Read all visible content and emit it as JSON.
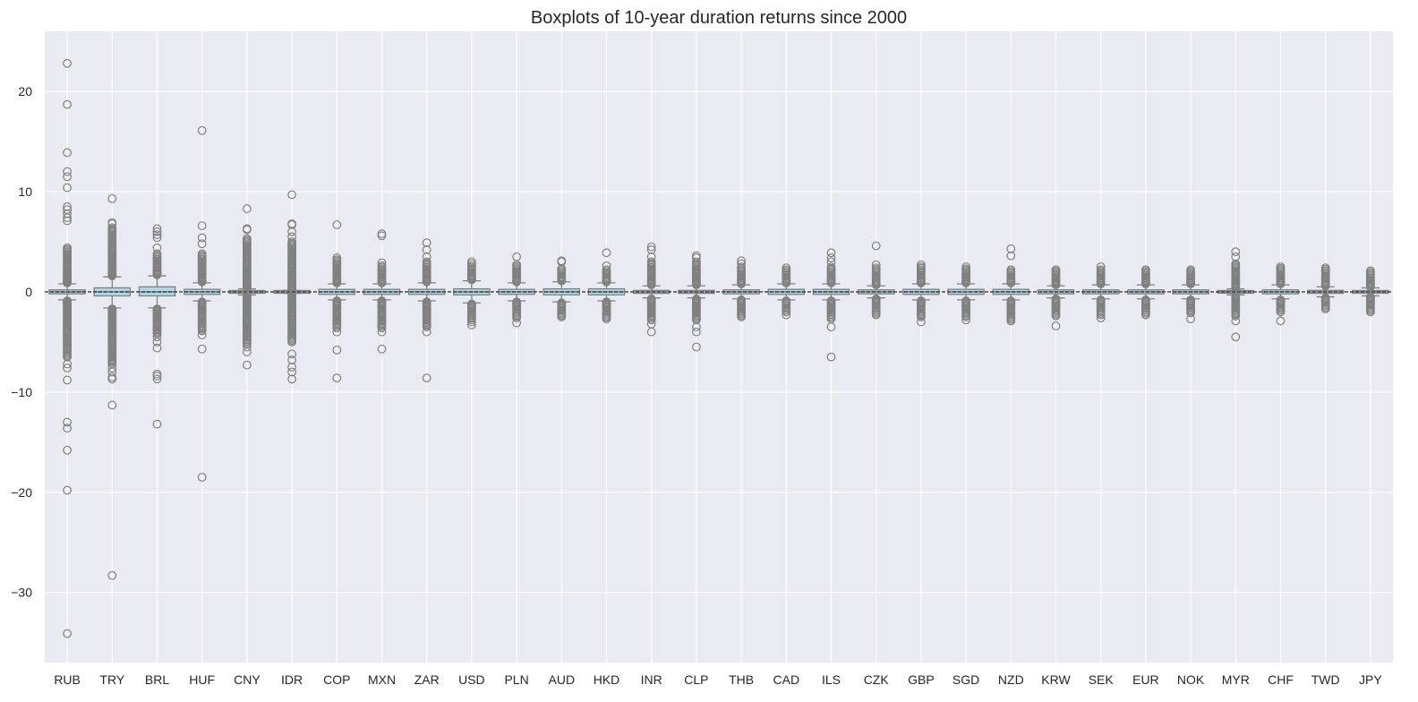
{
  "chart_data": {
    "type": "boxplot",
    "title": "Boxplots of 10-year duration returns since 2000",
    "xlabel": "",
    "ylabel": "",
    "ylim": [
      -37,
      26
    ],
    "yticks": [
      20,
      10,
      0,
      -10,
      -20,
      -30
    ],
    "ytick_labels": [
      "20",
      "10",
      "0",
      "−10",
      "−20",
      "−30"
    ],
    "grid": true,
    "colors": {
      "background": "#eaeaf2",
      "grid": "#ffffff",
      "box_fill": "#add8e6",
      "box_edge": "#808080",
      "median": "#808080"
    },
    "categories": [
      "RUB",
      "TRY",
      "BRL",
      "HUF",
      "CNY",
      "IDR",
      "COP",
      "MXN",
      "ZAR",
      "USD",
      "PLN",
      "AUD",
      "HKD",
      "INR",
      "CLP",
      "THB",
      "CAD",
      "ILS",
      "CZK",
      "GBP",
      "SGD",
      "NZD",
      "KRW",
      "SEK",
      "EUR",
      "NOK",
      "MYR",
      "CHF",
      "TWD",
      "JPY"
    ],
    "boxes": [
      {
        "q1": -0.2,
        "median": 0.0,
        "q3": 0.2,
        "whisker_low": -0.8,
        "whisker_high": 0.8,
        "max": 22.8,
        "min": -34.1,
        "outliers": [
          22.8,
          18.7,
          13.9,
          12.0,
          11.5,
          10.4,
          8.5,
          8.2,
          7.8,
          7.4,
          7.1,
          -7.2,
          -7.6,
          -8.8,
          -13.0,
          -13.6,
          -15.8,
          -19.8,
          -34.1
        ],
        "dense_upper": [
          0.9,
          4.4
        ],
        "dense_lower": [
          -0.9,
          -6.5
        ]
      },
      {
        "q1": -0.4,
        "median": 0.0,
        "q3": 0.4,
        "whisker_low": -1.6,
        "whisker_high": 1.5,
        "max": 9.3,
        "min": -28.3,
        "outliers": [
          9.3,
          6.9,
          6.8,
          -7.6,
          -8.0,
          -8.5,
          -8.7,
          -11.3,
          -28.3
        ],
        "dense_upper": [
          1.6,
          6.4
        ],
        "dense_lower": [
          -1.7,
          -7.2
        ]
      },
      {
        "q1": -0.4,
        "median": 0.0,
        "q3": 0.5,
        "whisker_low": -1.6,
        "whisker_high": 1.6,
        "max": 6.3,
        "min": -13.2,
        "outliers": [
          6.3,
          6.0,
          5.7,
          5.4,
          4.4,
          -4.5,
          -5.0,
          -5.6,
          -8.2,
          -8.4,
          -8.7,
          -13.2
        ],
        "dense_upper": [
          1.7,
          3.8
        ],
        "dense_lower": [
          -1.7,
          -4.2
        ]
      },
      {
        "q1": -0.25,
        "median": 0.0,
        "q3": 0.25,
        "whisker_low": -0.9,
        "whisker_high": 0.9,
        "max": 16.1,
        "min": -18.5,
        "outliers": [
          16.1,
          6.6,
          5.4,
          4.8,
          -4.3,
          -5.7,
          -18.5
        ],
        "dense_upper": [
          1.0,
          3.8
        ],
        "dense_lower": [
          -1.0,
          -3.9
        ]
      },
      {
        "q1": -0.1,
        "median": 0.0,
        "q3": 0.1,
        "whisker_low": -0.3,
        "whisker_high": 0.3,
        "max": 8.3,
        "min": -7.3,
        "outliers": [
          8.3,
          6.3,
          6.2,
          -5.5,
          -6.0,
          -7.3
        ],
        "dense_upper": [
          0.4,
          5.3
        ],
        "dense_lower": [
          -0.4,
          -5.2
        ]
      },
      {
        "q1": -0.05,
        "median": 0.0,
        "q3": 0.05,
        "whisker_low": -0.15,
        "whisker_high": 0.15,
        "max": 9.7,
        "min": -8.7,
        "outliers": [
          9.7,
          6.8,
          6.7,
          6.0,
          5.5,
          -6.2,
          -6.8,
          -7.5,
          -8.0,
          -8.7
        ],
        "dense_upper": [
          0.2,
          5.0
        ],
        "dense_lower": [
          -0.2,
          -5.0
        ]
      },
      {
        "q1": -0.25,
        "median": 0.0,
        "q3": 0.25,
        "whisker_low": -0.8,
        "whisker_high": 0.8,
        "max": 6.7,
        "min": -8.6,
        "outliers": [
          6.7,
          3.4,
          -4.0,
          -5.8,
          -8.6
        ],
        "dense_upper": [
          0.9,
          3.2
        ],
        "dense_lower": [
          -0.9,
          -3.6
        ]
      },
      {
        "q1": -0.25,
        "median": 0.0,
        "q3": 0.25,
        "whisker_low": -0.8,
        "whisker_high": 0.8,
        "max": 5.8,
        "min": -5.7,
        "outliers": [
          5.8,
          5.6,
          2.9,
          -4.0,
          -5.7
        ],
        "dense_upper": [
          0.9,
          2.6
        ],
        "dense_lower": [
          -0.9,
          -3.6
        ]
      },
      {
        "q1": -0.25,
        "median": 0.0,
        "q3": 0.25,
        "whisker_low": -0.9,
        "whisker_high": 0.9,
        "max": 4.9,
        "min": -8.6,
        "outliers": [
          4.9,
          4.2,
          3.5,
          -4.0,
          -8.6
        ],
        "dense_upper": [
          1.0,
          3.0
        ],
        "dense_lower": [
          -1.0,
          -3.5
        ]
      },
      {
        "q1": -0.3,
        "median": 0.0,
        "q3": 0.3,
        "whisker_low": -1.1,
        "whisker_high": 1.1,
        "max": 3.0,
        "min": -3.3,
        "outliers": [
          3.0,
          2.8,
          -3.0,
          -3.3
        ],
        "dense_upper": [
          1.2,
          2.6
        ],
        "dense_lower": [
          -1.2,
          -2.8
        ]
      },
      {
        "q1": -0.25,
        "median": 0.0,
        "q3": 0.25,
        "whisker_low": -0.9,
        "whisker_high": 0.9,
        "max": 3.5,
        "min": -3.1,
        "outliers": [
          3.5,
          -3.1
        ],
        "dense_upper": [
          1.0,
          2.7
        ],
        "dense_lower": [
          -1.0,
          -2.6
        ]
      },
      {
        "q1": -0.3,
        "median": 0.0,
        "q3": 0.3,
        "whisker_low": -1.0,
        "whisker_high": 1.0,
        "max": 3.1,
        "min": -2.5,
        "outliers": [
          3.1,
          3.0
        ],
        "dense_upper": [
          1.1,
          2.3
        ],
        "dense_lower": [
          -1.1,
          -2.5
        ]
      },
      {
        "q1": -0.3,
        "median": 0.0,
        "q3": 0.3,
        "whisker_low": -0.9,
        "whisker_high": 0.9,
        "max": 3.9,
        "min": -2.7,
        "outliers": [
          3.9,
          2.6
        ],
        "dense_upper": [
          1.0,
          2.2
        ],
        "dense_lower": [
          -1.0,
          -2.7
        ]
      },
      {
        "q1": -0.15,
        "median": 0.0,
        "q3": 0.15,
        "whisker_low": -0.6,
        "whisker_high": 0.6,
        "max": 4.5,
        "min": -4.0,
        "outliers": [
          4.5,
          4.2,
          3.5,
          -3.2,
          -4.0
        ],
        "dense_upper": [
          0.7,
          3.0
        ],
        "dense_lower": [
          -0.7,
          -2.8
        ]
      },
      {
        "q1": -0.15,
        "median": 0.0,
        "q3": 0.15,
        "whisker_low": -0.6,
        "whisker_high": 0.6,
        "max": 3.6,
        "min": -5.5,
        "outliers": [
          3.6,
          3.4,
          -3.5,
          -4.0,
          -5.5
        ],
        "dense_upper": [
          0.7,
          3.0
        ],
        "dense_lower": [
          -0.7,
          -2.8
        ]
      },
      {
        "q1": -0.2,
        "median": 0.0,
        "q3": 0.2,
        "whisker_low": -0.7,
        "whisker_high": 0.7,
        "max": 3.1,
        "min": -2.5,
        "outliers": [
          3.1,
          2.8
        ],
        "dense_upper": [
          0.8,
          2.5
        ],
        "dense_lower": [
          -0.8,
          -2.5
        ]
      },
      {
        "q1": -0.25,
        "median": 0.0,
        "q3": 0.25,
        "whisker_low": -0.8,
        "whisker_high": 0.8,
        "max": 2.4,
        "min": -2.3,
        "outliers": [
          2.4,
          -2.3
        ],
        "dense_upper": [
          0.9,
          2.2
        ],
        "dense_lower": [
          -0.9,
          -2.0
        ]
      },
      {
        "q1": -0.25,
        "median": 0.0,
        "q3": 0.25,
        "whisker_low": -0.8,
        "whisker_high": 0.8,
        "max": 3.9,
        "min": -6.5,
        "outliers": [
          3.9,
          3.4,
          3.0,
          -3.5,
          -6.5
        ],
        "dense_upper": [
          0.9,
          2.5
        ],
        "dense_lower": [
          -0.9,
          -2.7
        ]
      },
      {
        "q1": -0.2,
        "median": 0.0,
        "q3": 0.2,
        "whisker_low": -0.6,
        "whisker_high": 0.6,
        "max": 4.6,
        "min": -2.3,
        "outliers": [
          4.6,
          2.7
        ],
        "dense_upper": [
          0.7,
          2.4
        ],
        "dense_lower": [
          -0.7,
          -2.3
        ]
      },
      {
        "q1": -0.25,
        "median": 0.0,
        "q3": 0.25,
        "whisker_low": -0.8,
        "whisker_high": 0.8,
        "max": 2.7,
        "min": -3.0,
        "outliers": [
          2.7,
          -3.0
        ],
        "dense_upper": [
          0.9,
          2.5
        ],
        "dense_lower": [
          -0.9,
          -2.5
        ]
      },
      {
        "q1": -0.25,
        "median": 0.0,
        "q3": 0.25,
        "whisker_low": -0.8,
        "whisker_high": 0.8,
        "max": 2.5,
        "min": -2.8,
        "outliers": [
          2.5,
          -2.8
        ],
        "dense_upper": [
          0.9,
          2.3
        ],
        "dense_lower": [
          -0.9,
          -2.5
        ]
      },
      {
        "q1": -0.25,
        "median": 0.0,
        "q3": 0.25,
        "whisker_low": -0.8,
        "whisker_high": 0.8,
        "max": 4.3,
        "min": -2.9,
        "outliers": [
          4.3,
          3.6
        ],
        "dense_upper": [
          0.9,
          2.2
        ],
        "dense_lower": [
          -0.9,
          -2.9
        ]
      },
      {
        "q1": -0.2,
        "median": 0.0,
        "q3": 0.2,
        "whisker_low": -0.6,
        "whisker_high": 0.6,
        "max": 2.2,
        "min": -3.4,
        "outliers": [
          -3.4
        ],
        "dense_upper": [
          0.7,
          2.2
        ],
        "dense_lower": [
          -0.7,
          -2.4
        ]
      },
      {
        "q1": -0.2,
        "median": 0.0,
        "q3": 0.2,
        "whisker_low": -0.7,
        "whisker_high": 0.7,
        "max": 2.5,
        "min": -2.6,
        "outliers": [
          2.5,
          -2.6
        ],
        "dense_upper": [
          0.8,
          2.2
        ],
        "dense_lower": [
          -0.8,
          -2.3
        ]
      },
      {
        "q1": -0.2,
        "median": 0.0,
        "q3": 0.2,
        "whisker_low": -0.7,
        "whisker_high": 0.7,
        "max": 2.2,
        "min": -2.3,
        "outliers": [],
        "dense_upper": [
          0.8,
          2.2
        ],
        "dense_lower": [
          -0.8,
          -2.3
        ]
      },
      {
        "q1": -0.2,
        "median": 0.0,
        "q3": 0.2,
        "whisker_low": -0.7,
        "whisker_high": 0.7,
        "max": 2.2,
        "min": -2.7,
        "outliers": [
          -2.7
        ],
        "dense_upper": [
          0.8,
          2.2
        ],
        "dense_lower": [
          -0.8,
          -2.1
        ]
      },
      {
        "q1": -0.1,
        "median": 0.0,
        "q3": 0.1,
        "whisker_low": -0.3,
        "whisker_high": 0.3,
        "max": 4.0,
        "min": -4.5,
        "outliers": [
          4.0,
          3.5,
          -2.9,
          -4.5
        ],
        "dense_upper": [
          0.4,
          2.8
        ],
        "dense_lower": [
          -0.4,
          -2.4
        ]
      },
      {
        "q1": -0.2,
        "median": 0.0,
        "q3": 0.2,
        "whisker_low": -0.7,
        "whisker_high": 0.7,
        "max": 2.5,
        "min": -2.9,
        "outliers": [
          -2.9
        ],
        "dense_upper": [
          0.8,
          2.5
        ],
        "dense_lower": [
          -0.8,
          -2.0
        ]
      },
      {
        "q1": -0.15,
        "median": 0.0,
        "q3": 0.15,
        "whisker_low": -0.5,
        "whisker_high": 0.5,
        "max": 2.4,
        "min": -1.7,
        "outliers": [],
        "dense_upper": [
          0.6,
          2.4
        ],
        "dense_lower": [
          -0.6,
          -1.7
        ]
      },
      {
        "q1": -0.1,
        "median": 0.0,
        "q3": 0.1,
        "whisker_low": -0.4,
        "whisker_high": 0.4,
        "max": 2.1,
        "min": -2.0,
        "outliers": [],
        "dense_upper": [
          0.5,
          2.1
        ],
        "dense_lower": [
          -0.5,
          -2.0
        ]
      }
    ]
  }
}
